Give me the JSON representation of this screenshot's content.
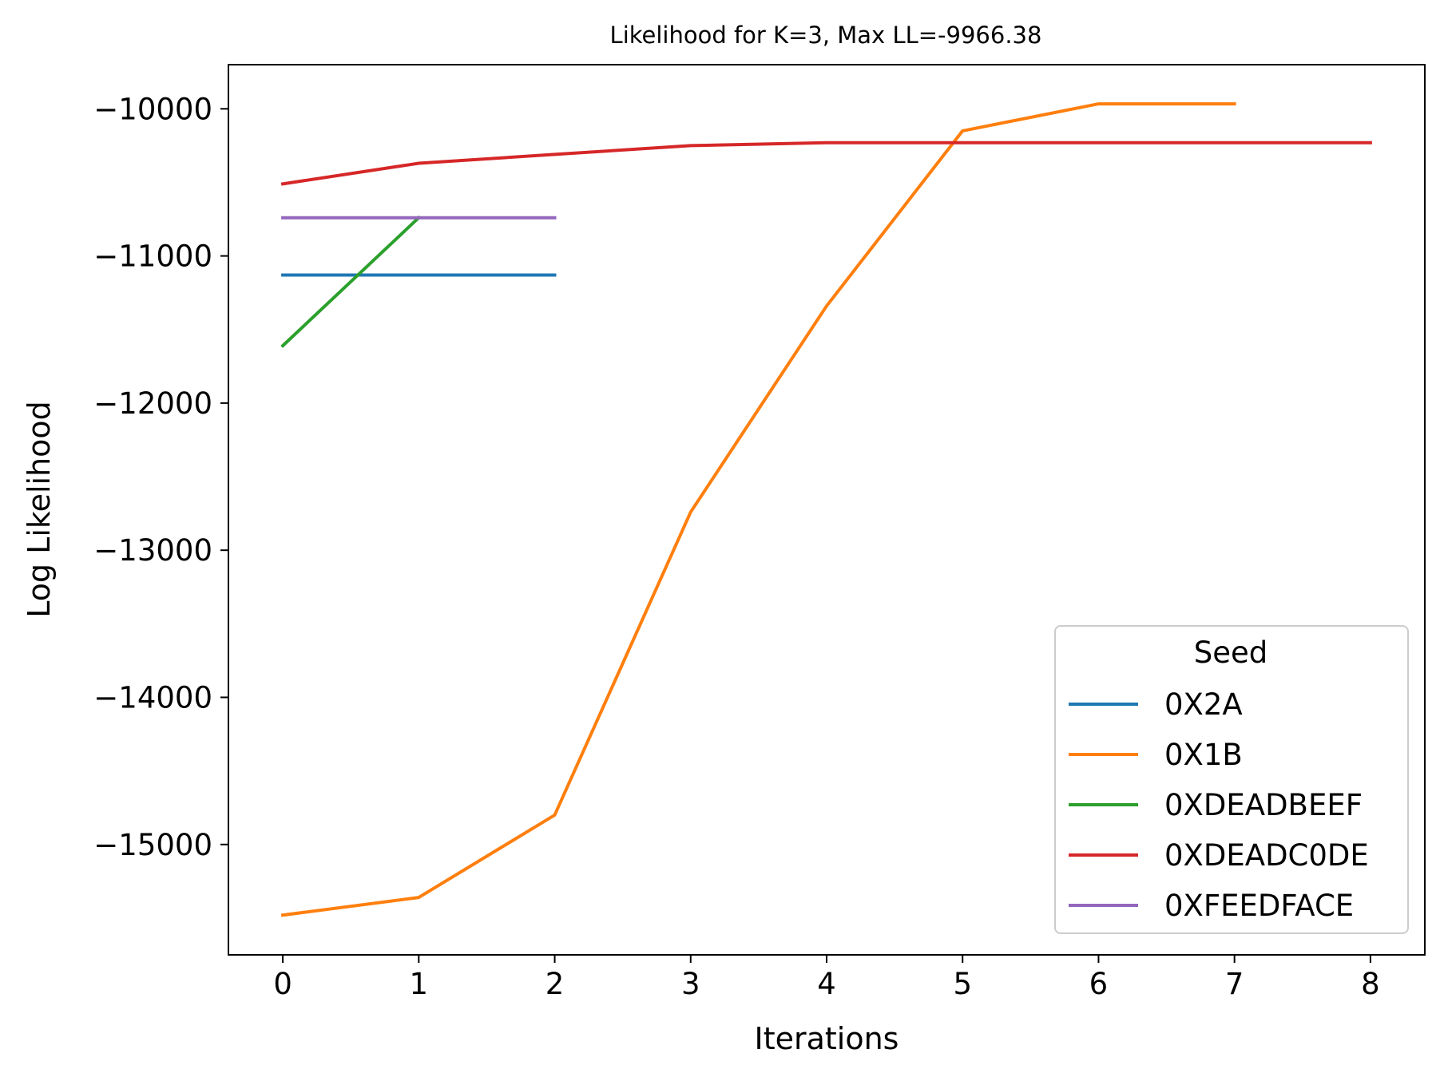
{
  "chart_data": {
    "type": "line",
    "title": "Likelihood for K=3,  Max LL=-9966.38",
    "xlabel": "Iterations",
    "ylabel": "Log Likelihood",
    "xlim": [
      -0.4,
      8.4
    ],
    "ylim": [
      -15750,
      -9700
    ],
    "xticks": [
      0,
      1,
      2,
      3,
      4,
      5,
      6,
      7,
      8
    ],
    "xtick_labels": [
      "0",
      "1",
      "2",
      "3",
      "4",
      "5",
      "6",
      "7",
      "8"
    ],
    "yticks": [
      -10000,
      -11000,
      -12000,
      -13000,
      -14000,
      -15000
    ],
    "ytick_labels": [
      "−10000",
      "−11000",
      "−12000",
      "−13000",
      "−14000",
      "−15000"
    ],
    "grid": false,
    "legend": {
      "title": "Seed",
      "position": "lower-right"
    },
    "series": [
      {
        "name": "0X2A",
        "color": "#1f77b4",
        "x": [
          0,
          1,
          2
        ],
        "y": [
          -11130,
          -11130,
          -11130
        ]
      },
      {
        "name": "0X1B",
        "color": "#ff7f0e",
        "x": [
          0,
          1,
          2,
          3,
          4,
          5,
          6,
          7
        ],
        "y": [
          -15480,
          -15360,
          -14800,
          -12740,
          -11340,
          -10150,
          -9966.38,
          -9966.38
        ]
      },
      {
        "name": "0XDEADBEEF",
        "color": "#2ca02c",
        "x": [
          0,
          1
        ],
        "y": [
          -11610,
          -10740
        ]
      },
      {
        "name": "0XDEADC0DE",
        "color": "#d62728",
        "x": [
          0,
          1,
          2,
          3,
          4,
          5,
          6,
          7,
          8
        ],
        "y": [
          -10510,
          -10370,
          -10310,
          -10250,
          -10230,
          -10230,
          -10230,
          -10230,
          -10230
        ]
      },
      {
        "name": "0XFEEDFACE",
        "color": "#9467bd",
        "x": [
          0,
          1,
          2
        ],
        "y": [
          -10740,
          -10740,
          -10740
        ]
      }
    ]
  }
}
